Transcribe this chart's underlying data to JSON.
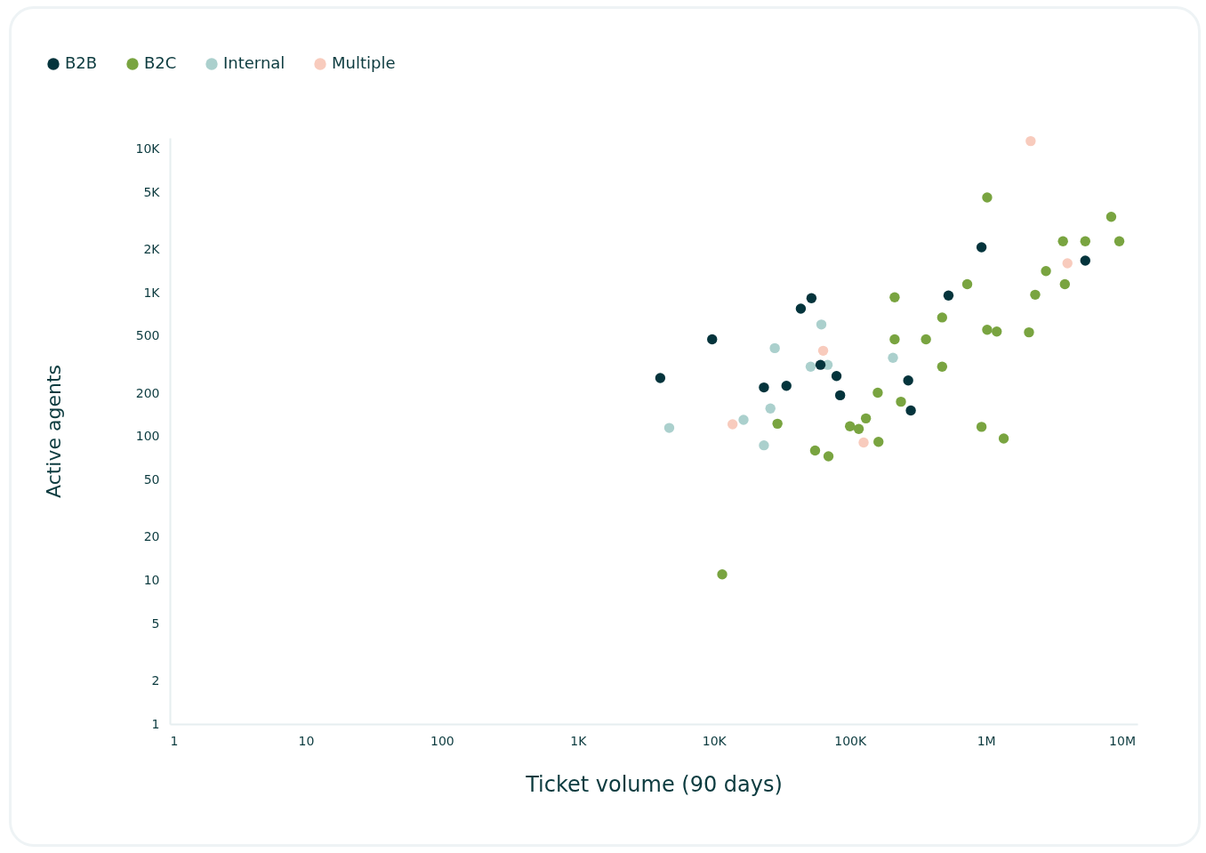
{
  "chart_data": {
    "type": "scatter",
    "xlabel": "Ticket volume (90 days)",
    "ylabel": "Active agents",
    "log": "xy",
    "grid": false,
    "legend": "top left",
    "marker": "circle",
    "xlim": [
      1,
      13000000
    ],
    "ylim": [
      1,
      12000
    ],
    "xticks": [
      1,
      10,
      100,
      {
        "value": 1000,
        "label": "1K"
      },
      {
        "value": 10000,
        "label": "10K"
      },
      {
        "value": 100000,
        "label": "100K"
      },
      {
        "value": 1000000,
        "label": "1M"
      },
      {
        "value": 10000000,
        "label": "10M"
      }
    ],
    "yticks": [
      1,
      2,
      5,
      10,
      20,
      50,
      100,
      200,
      500,
      {
        "value": 1000,
        "label": "1K"
      },
      {
        "value": 2000,
        "label": "2K"
      },
      {
        "value": 5000,
        "label": "5K"
      },
      {
        "value": 10000,
        "label": "10K"
      }
    ],
    "series": [
      {
        "name": "B2B",
        "color": "#04343c",
        "x": [
          4030,
          9700,
          23300,
          34100,
          43500,
          52100,
          60700,
          79600,
          84700,
          268000,
          280000,
          530000,
          927000,
          5370000
        ],
        "values": [
          256,
          475,
          220,
          226,
          777,
          919,
          316,
          264,
          194,
          246,
          152,
          959,
          2080,
          1680
        ]
      },
      {
        "name": "B2C",
        "color": "#79a440",
        "x": [
          11500,
          29300,
          55400,
          69500,
          100000,
          116000,
          131000,
          160000,
          162000,
          213000,
          213000,
          237000,
          362000,
          476000,
          476000,
          728000,
          927000,
          1020000,
          1020000,
          1200000,
          1350000,
          2070000,
          2300000,
          2760000,
          3680000,
          3800000,
          5370000,
          8330000,
          9550000
        ],
        "values": [
          11,
          123,
          80,
          73,
          118,
          113,
          134,
          202,
          92,
          933,
          475,
          175,
          475,
          675,
          307,
          1150,
          117,
          4620,
          554,
          539,
          97,
          532,
          972,
          1420,
          2290,
          1150,
          2290,
          3390,
          2290
        ]
      },
      {
        "name": "Internal",
        "color": "#abd0cd",
        "x": [
          4690,
          16500,
          23300,
          26000,
          28000,
          51400,
          61600,
          68500,
          207000
        ],
        "values": [
          115,
          131,
          87,
          157,
          413,
          307,
          603,
          316,
          354
        ]
      },
      {
        "name": "Multiple",
        "color": "#f8cbbd",
        "x": [
          13700,
          63500,
          126000,
          2130000,
          3970000
        ],
        "values": [
          122,
          396,
          91,
          11400,
          1610
        ]
      }
    ]
  }
}
